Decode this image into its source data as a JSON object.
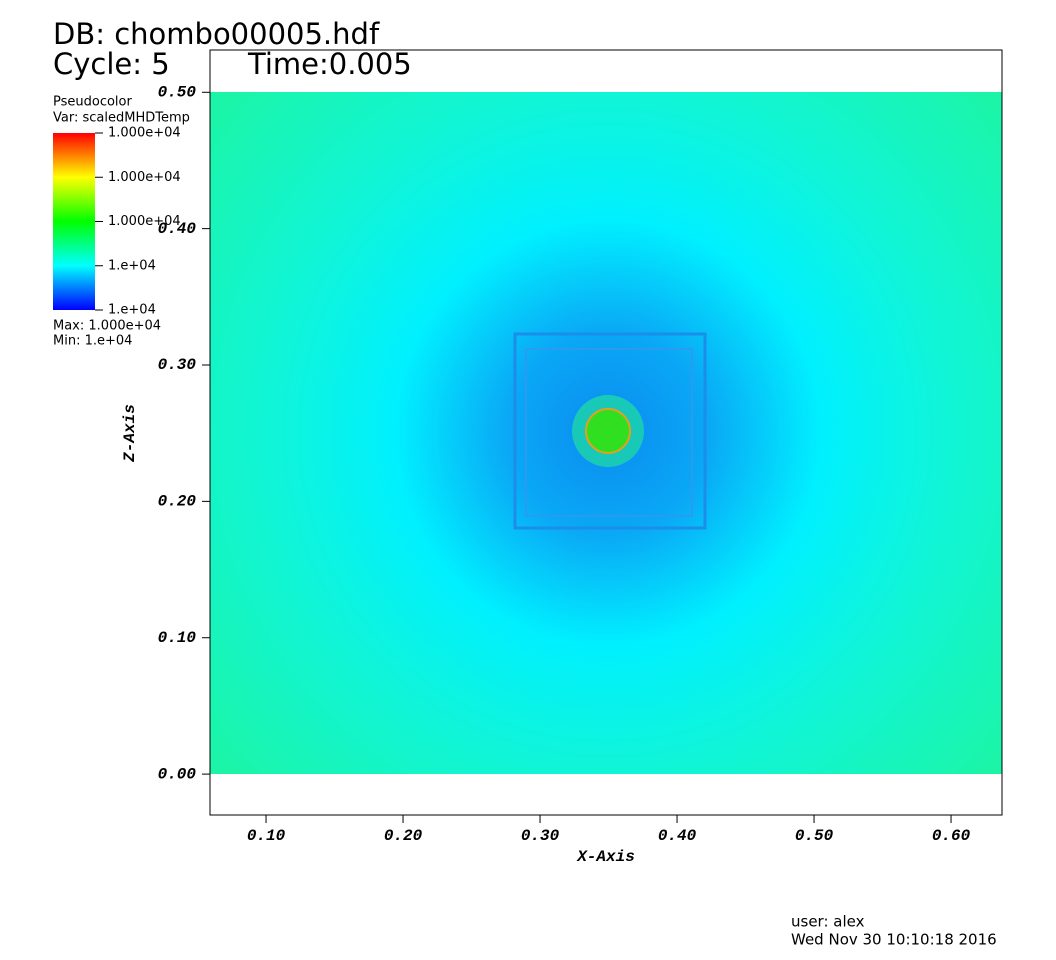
{
  "chart_data": {
    "type": "pseudocolor",
    "title": "DB: chombo00005.hdf",
    "cycle": "Cycle: 5",
    "time": "Time:0.005",
    "legend_title": "Pseudocolor",
    "legend_var": "Var: scaledMHDTemp",
    "legend_labels": [
      "1.000e+04",
      "1.000e+04",
      "1.000e+04",
      "1.e+04",
      "1.e+04"
    ],
    "legend_max": "Max:  1.000e+04",
    "legend_min": "Min:  1.e+04",
    "x_label": "X-Axis",
    "y_label": "Z-Axis",
    "xlim": [
      0.0591,
      0.6372
    ],
    "ylim": [
      -0.03,
      0.531
    ],
    "xticks": [
      {
        "value": 0.1,
        "label": "0.10"
      },
      {
        "value": 0.2,
        "label": "0.20"
      },
      {
        "value": 0.3,
        "label": "0.30"
      },
      {
        "value": 0.4,
        "label": "0.40"
      },
      {
        "value": 0.5,
        "label": "0.50"
      },
      {
        "value": 0.6,
        "label": "0.60"
      }
    ],
    "yticks": [
      {
        "value": 0,
        "label": "0.00"
      },
      {
        "value": 0.1,
        "label": "0.10"
      },
      {
        "value": 0.2,
        "label": "0.20"
      },
      {
        "value": 0.3,
        "label": "0.30"
      },
      {
        "value": 0.4,
        "label": "0.40"
      },
      {
        "value": 0.5,
        "label": "0.50"
      }
    ],
    "user": "user: alex",
    "date": "Wed Nov 30 10:10:18 2016"
  }
}
